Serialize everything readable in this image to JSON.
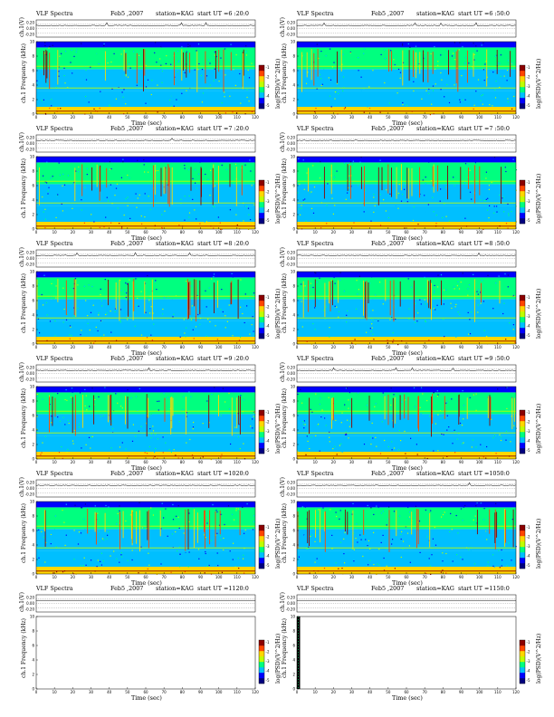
{
  "chart_data": {
    "type": "heatmap",
    "header_title": "VLF Spectra",
    "date": "Feb5 ,2007",
    "station": "station=KAG",
    "time_unit": "Time (sec)",
    "ch_label": "ch.1(V)",
    "ch_ticks": [
      "0.20",
      "0.00",
      "-0.20"
    ],
    "freq_label": "ch.1 Frequency (kHz)",
    "freq_ticks": [
      0,
      2,
      4,
      6,
      8,
      10
    ],
    "xlim": [
      0,
      120
    ],
    "x_ticks": [
      0,
      10,
      20,
      30,
      40,
      50,
      60,
      70,
      80,
      90,
      100,
      110,
      120
    ],
    "colorbar_label": "log(PSD)(V^2/Hz)",
    "colorbar_ticks": [
      "-1",
      "-2",
      "-3",
      "-4",
      "-5"
    ],
    "colormap": [
      "#00007f",
      "#0000ff",
      "#00bfff",
      "#00ff7f",
      "#bfff00",
      "#ffd700",
      "#ff4500",
      "#8b0000"
    ],
    "panels": [
      {
        "start": "start  UT =6 :20:0",
        "has_data": true
      },
      {
        "start": "start  UT =6 :50:0",
        "has_data": true
      },
      {
        "start": "start  UT =7 :20:0",
        "has_data": true
      },
      {
        "start": "start  UT =7 :50:0",
        "has_data": true
      },
      {
        "start": "start  UT =8 :20:0",
        "has_data": true
      },
      {
        "start": "start  UT =8 :50:0",
        "has_data": true
      },
      {
        "start": "start  UT =9 :20:0",
        "has_data": true
      },
      {
        "start": "start  UT =9 :50:0",
        "has_data": true
      },
      {
        "start": "start  UT =1020:0",
        "has_data": true
      },
      {
        "start": "start  UT =1050:0",
        "has_data": true
      },
      {
        "start": "start  UT =1120:0",
        "has_data": false
      },
      {
        "start": "start  UT =1150:0",
        "has_data": false
      }
    ]
  }
}
